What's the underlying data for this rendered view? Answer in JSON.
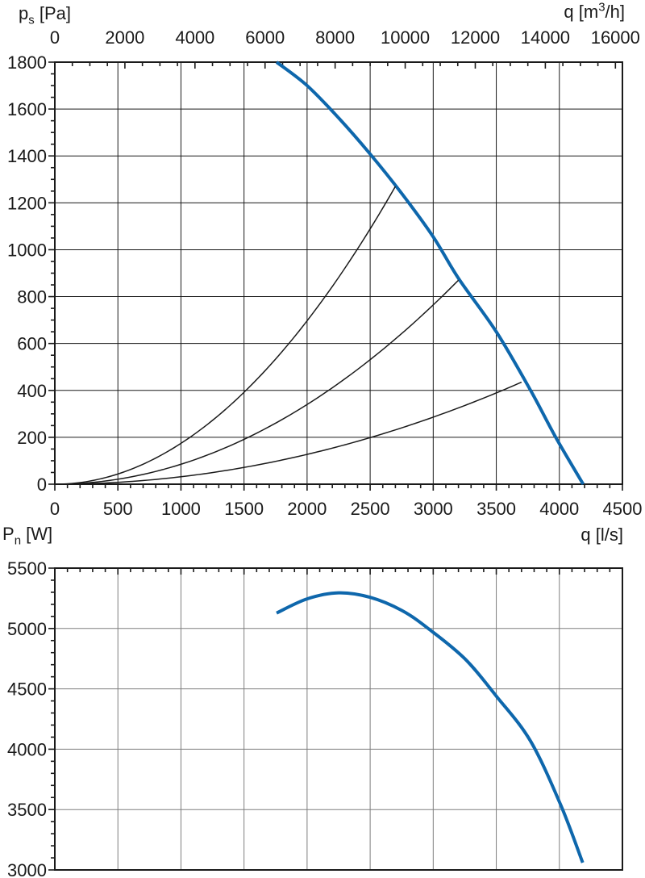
{
  "page": {
    "background": "#ffffff"
  },
  "colors": {
    "curve_blue": "#0e67ac",
    "axis_black": "#1a1a1a",
    "grid_dark": "#1a1a1a",
    "grid_gray": "#7e7e7e"
  },
  "labels": {
    "pressure_axis": {
      "base": "p",
      "sub": "s",
      "unit": " [Pa]"
    },
    "flow_m3h_axis": {
      "pre": "q [m",
      "sup": "3",
      "post": "/h]"
    },
    "power_axis": {
      "base": "P",
      "sub": "n",
      "unit": " [W]"
    },
    "flow_ls_axis": {
      "text": "q [l/s]"
    }
  },
  "chart_data": [
    {
      "type": "line",
      "name": "fan-static-pressure-chart",
      "title": "",
      "x_bottom": {
        "label": "q [l/s]",
        "min": 0,
        "max": 4500,
        "major": 500,
        "minor": 100,
        "tick_labels": [
          "0",
          "500",
          "1000",
          "1500",
          "2000",
          "2500",
          "3000",
          "3500",
          "4000",
          "4500"
        ]
      },
      "x_top": {
        "label": "q [m3/h]",
        "min": 0,
        "max": 16000,
        "major": 2000,
        "minor": 500,
        "ls_per_unit": 3.6,
        "tick_labels": [
          "0",
          "2000",
          "4000",
          "6000",
          "8000",
          "10000",
          "12000",
          "14000",
          "16000"
        ]
      },
      "y": {
        "label": "ps [Pa]",
        "min": 0,
        "max": 1800,
        "major": 200,
        "minor": 50,
        "tick_labels": [
          "0",
          "200",
          "400",
          "600",
          "800",
          "1000",
          "1200",
          "1400",
          "1600",
          "1800"
        ]
      },
      "grid": {
        "vertical_step_ls": 500,
        "horizontal_step": 200
      },
      "series": [
        {
          "name": "fan-curve",
          "kind": "smooth",
          "color": "blue",
          "width": 4,
          "points": [
            [
              1758,
              1800
            ],
            [
              2000,
              1700
            ],
            [
              2250,
              1562
            ],
            [
              2500,
              1408
            ],
            [
              2750,
              1240
            ],
            [
              3000,
              1055
            ],
            [
              3200,
              878
            ],
            [
              3500,
              650
            ],
            [
              3772,
              400
            ],
            [
              3971,
              200
            ],
            [
              4189,
              0
            ]
          ]
        },
        {
          "name": "system-curve-steep",
          "kind": "parabola",
          "color": "black",
          "width": 1.5,
          "end": [
            2700,
            1270
          ]
        },
        {
          "name": "system-curve-mid",
          "kind": "parabola",
          "color": "black",
          "width": 1.5,
          "end": [
            3200,
            870
          ]
        },
        {
          "name": "system-curve-flat",
          "kind": "parabola",
          "color": "black",
          "width": 1.5,
          "end": [
            3700,
            435
          ]
        }
      ]
    },
    {
      "type": "line",
      "name": "fan-power-chart",
      "title": "",
      "x_bottom": {
        "label": "q [l/s]",
        "min": 0,
        "max": 4500,
        "major": 500,
        "minor": 100,
        "tick_labels": []
      },
      "y": {
        "label": "Pn [W]",
        "min": 3000,
        "max": 5500,
        "major": 500,
        "minor": 100,
        "tick_labels": [
          "3000",
          "3500",
          "4000",
          "4500",
          "5000",
          "5500"
        ]
      },
      "grid": {
        "vertical_step_ls": 500,
        "horizontal_step": 500
      },
      "series": [
        {
          "name": "power-curve",
          "kind": "smooth",
          "color": "blue",
          "width": 4,
          "points": [
            [
              1758,
              5128
            ],
            [
              2000,
              5245
            ],
            [
              2250,
              5295
            ],
            [
              2500,
              5258
            ],
            [
              2750,
              5150
            ],
            [
              2960,
              5000
            ],
            [
              3250,
              4750
            ],
            [
              3500,
              4440
            ],
            [
              3770,
              4070
            ],
            [
              4010,
              3540
            ],
            [
              4185,
              3060
            ]
          ]
        }
      ]
    }
  ]
}
